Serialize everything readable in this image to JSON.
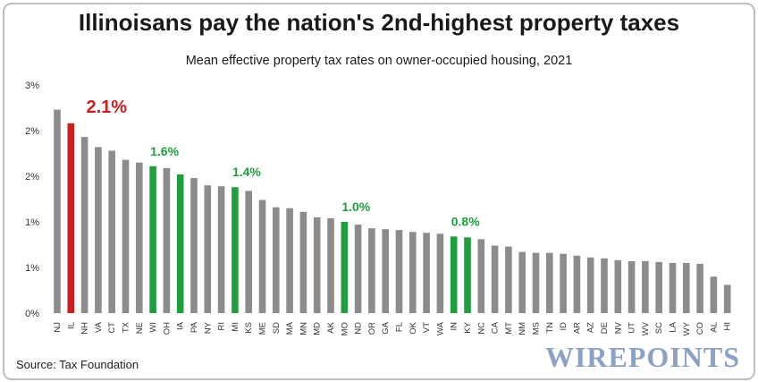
{
  "header": {
    "title": "Illinoisans pay the nation's 2nd-highest property taxes",
    "subtitle": "Mean effective property tax rates on owner-occupied housing, 2021"
  },
  "footer": {
    "source": "Source: Tax Foundation",
    "brand": "WIREPOINTS"
  },
  "colors": {
    "default_bar": "#8c8c8c",
    "highlight_red": "#c81e1e",
    "highlight_green": "#1f9e3f",
    "axis_text": "#333333"
  },
  "chart_data": {
    "type": "bar",
    "title": "Illinoisans pay the nation's 2nd-highest property taxes",
    "subtitle": "Mean effective property tax rates on owner-occupied housing, 2021",
    "xlabel": "",
    "ylabel": "",
    "y_tick_labels": [
      "0%",
      "1%",
      "1%",
      "2%",
      "2%",
      "3%"
    ],
    "ylim": [
      0,
      2.5
    ],
    "grid": false,
    "categories": [
      "NJ",
      "IL",
      "NH",
      "VA",
      "CT",
      "TX",
      "NE",
      "WI",
      "OH",
      "IA",
      "PA",
      "NY",
      "RI",
      "MI",
      "KS",
      "ME",
      "SD",
      "MA",
      "MN",
      "MD",
      "AK",
      "MO",
      "ND",
      "OR",
      "GA",
      "FL",
      "OK",
      "VT",
      "WA",
      "IN",
      "KY",
      "NC",
      "CA",
      "MT",
      "NM",
      "MS",
      "TN",
      "ID",
      "AR",
      "AZ",
      "DE",
      "NV",
      "UT",
      "WV",
      "SC",
      "LA",
      "WY",
      "CO",
      "AL",
      "HI"
    ],
    "values": [
      2.23,
      2.08,
      1.93,
      1.82,
      1.78,
      1.68,
      1.65,
      1.61,
      1.59,
      1.52,
      1.48,
      1.4,
      1.39,
      1.38,
      1.34,
      1.24,
      1.16,
      1.15,
      1.11,
      1.05,
      1.04,
      1.0,
      0.97,
      0.93,
      0.92,
      0.91,
      0.89,
      0.88,
      0.87,
      0.84,
      0.83,
      0.81,
      0.74,
      0.73,
      0.67,
      0.66,
      0.66,
      0.65,
      0.63,
      0.61,
      0.6,
      0.58,
      0.57,
      0.57,
      0.56,
      0.55,
      0.55,
      0.54,
      0.4,
      0.31
    ],
    "highlights": {
      "IL": {
        "color": "red",
        "label": "2.1%"
      },
      "WI": {
        "color": "green",
        "label": "1.6%"
      },
      "IA": {
        "color": "green"
      },
      "MI": {
        "color": "green",
        "label": "1.4%"
      },
      "MO": {
        "color": "green",
        "label": "1.0%"
      },
      "IN": {
        "color": "green",
        "label": "0.8%"
      },
      "KY": {
        "color": "green"
      }
    }
  }
}
